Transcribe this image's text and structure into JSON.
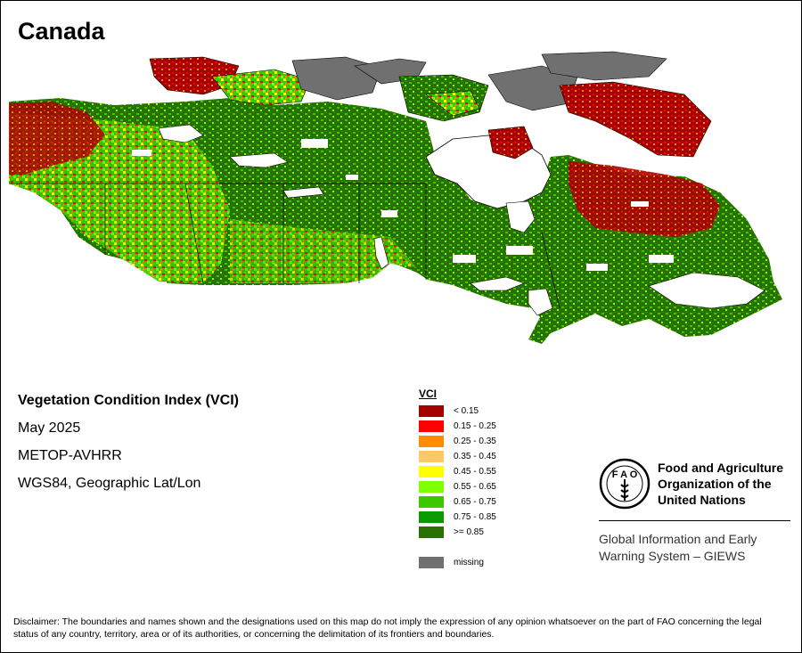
{
  "title": "Canada",
  "info": {
    "index_name": "Vegetation Condition Index (VCI)",
    "date": "May 2025",
    "sensor": "METOP-AVHRR",
    "projection": "WGS84, Geographic Lat/Lon"
  },
  "legend": {
    "title": "VCI",
    "classes": [
      {
        "label": "< 0.15",
        "color": "#a50000"
      },
      {
        "label": "0.15 - 0.25",
        "color": "#ff0000"
      },
      {
        "label": "0.25 - 0.35",
        "color": "#ff8c00"
      },
      {
        "label": "0.35 - 0.45",
        "color": "#ffc866"
      },
      {
        "label": "0.45 - 0.55",
        "color": "#ffff00"
      },
      {
        "label": "0.55 - 0.65",
        "color": "#80ff00"
      },
      {
        "label": "0.65 - 0.75",
        "color": "#3cc800"
      },
      {
        "label": "0.75 - 0.85",
        "color": "#0a9a00"
      },
      {
        "label": ">= 0.85",
        "color": "#2a7000"
      }
    ],
    "missing": {
      "label": "missing",
      "color": "#707070"
    }
  },
  "logo": {
    "org_line1": "Food and Agriculture",
    "org_line2": "Organization of the",
    "org_line3": "United Nations",
    "system_line1": "Global Information and Early",
    "system_line2": "Warning System – GIEWS"
  },
  "disclaimer": "Disclaimer: The boundaries and names shown and the designations used on this map do not imply the expression of any opinion whatsoever on the part of FAO concerning the legal status of any country, territory, area or of its authorities, or concerning the delimitation of its frontiers and boundaries."
}
